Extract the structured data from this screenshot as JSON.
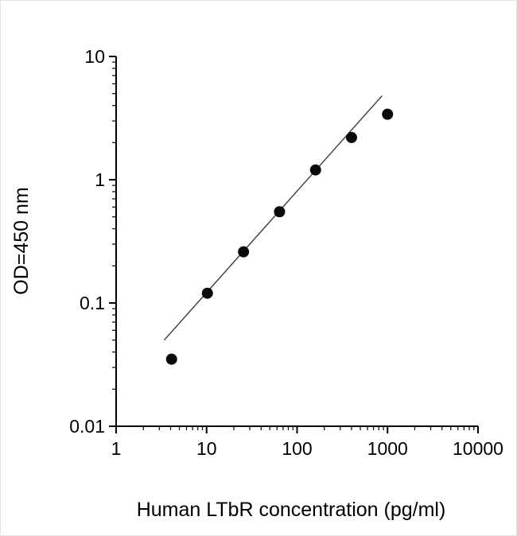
{
  "chart_data": {
    "type": "scatter",
    "title": "",
    "xlabel": "Human LTbR concentration (pg/ml)",
    "ylabel": "OD=450 nm",
    "x_scale": "log",
    "y_scale": "log",
    "xlim": [
      1,
      10000
    ],
    "ylim": [
      0.01,
      10
    ],
    "x_ticks": [
      1,
      10,
      100,
      1000,
      10000
    ],
    "y_ticks": [
      0.01,
      0.1,
      1,
      10
    ],
    "grid": false,
    "legend": false,
    "points": [
      {
        "x": 4.1,
        "y": 0.035
      },
      {
        "x": 10.2,
        "y": 0.12
      },
      {
        "x": 25.6,
        "y": 0.26
      },
      {
        "x": 64,
        "y": 0.55
      },
      {
        "x": 160,
        "y": 1.2
      },
      {
        "x": 400,
        "y": 2.2
      },
      {
        "x": 1000,
        "y": 3.4
      }
    ],
    "fit_line": {
      "x1": 3.4,
      "y1": 0.05,
      "x2": 870,
      "y2": 4.8
    },
    "axis_color": "#000000",
    "marker_color": "#0b0b0b",
    "line_color": "#3a3a3a"
  }
}
